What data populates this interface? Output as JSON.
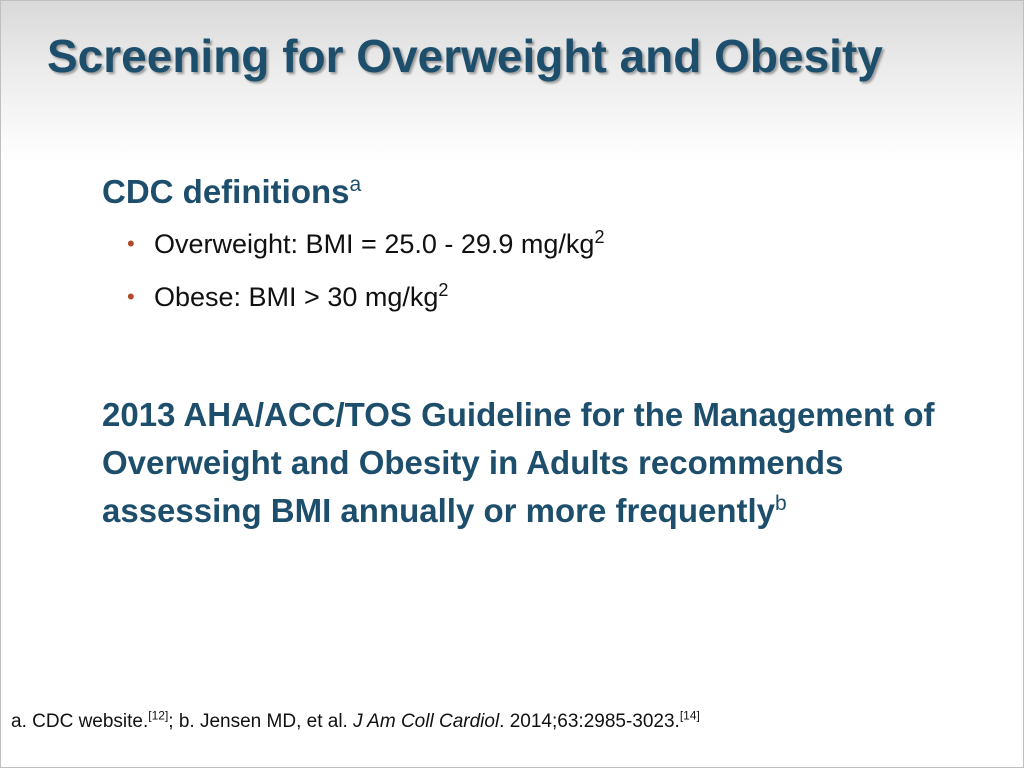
{
  "slide": {
    "title": "Screening for Overweight and Obesity",
    "cdc": {
      "heading": "CDC definitions",
      "heading_sup": "a",
      "bullets": [
        {
          "text": "Overweight: BMI = 25.0 - 29.9 mg/kg",
          "sup": "2"
        },
        {
          "text": "Obese: BMI > 30 mg/kg",
          "sup": "2"
        }
      ]
    },
    "guideline": {
      "text": "2013 AHA/ACC/TOS Guideline for the Management of Overweight and Obesity in Adults recommends assessing BMI annually or more frequently",
      "sup": "b"
    },
    "footnote": {
      "part1": "a. CDC website.",
      "ref1": "[12]",
      "part2": "; b. Jensen MD, et al. ",
      "journal": "J Am Coll Cardiol",
      "part3": ". 2014;63:2985-3023.",
      "ref2": "[14]"
    },
    "colors": {
      "title": "#1d4e6b",
      "bullet": "#b04a2a",
      "body_text": "#111111"
    }
  }
}
